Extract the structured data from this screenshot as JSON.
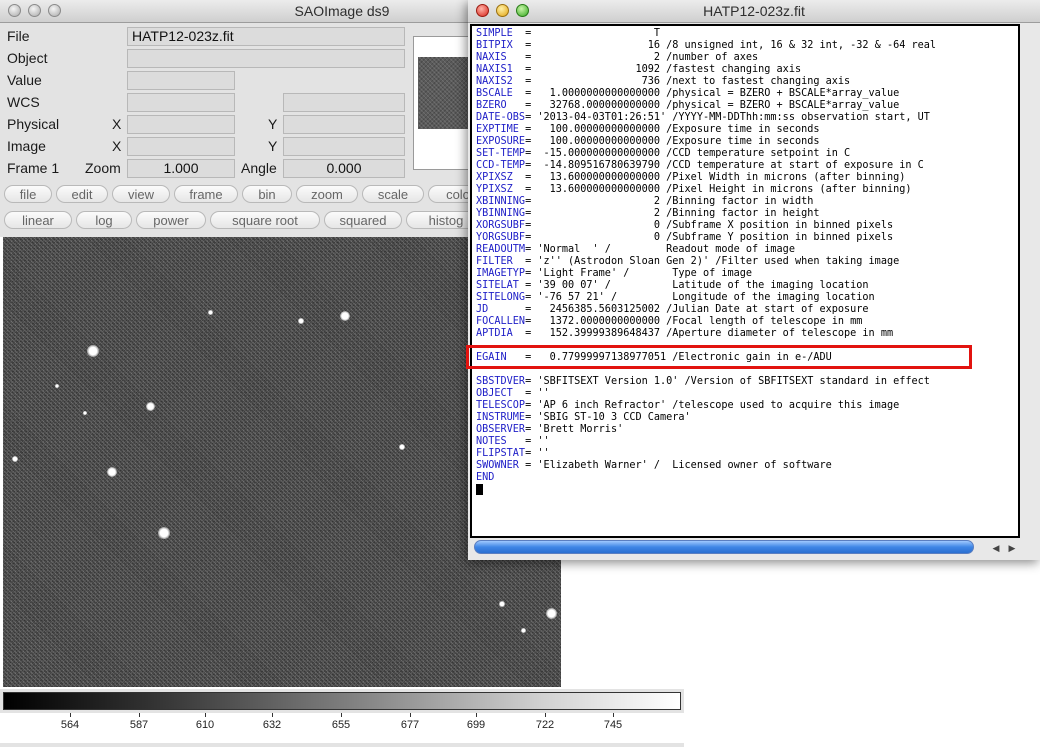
{
  "ds9": {
    "title": "SAOImage ds9",
    "info": {
      "file_label": "File",
      "file_value": "HATP12-023z.fit",
      "object_label": "Object",
      "value_label": "Value",
      "wcs_label": "WCS",
      "physical_label": "Physical",
      "image_label": "Image",
      "x_label": "X",
      "y_label": "Y",
      "frame_label": "Frame 1",
      "zoom_label": "Zoom",
      "zoom_value": "1.000",
      "angle_label": "Angle",
      "angle_value": "0.000"
    },
    "menu_buttons": [
      "file",
      "edit",
      "view",
      "frame",
      "bin",
      "zoom",
      "scale",
      "colo"
    ],
    "scale_buttons": [
      "linear",
      "log",
      "power",
      "square root",
      "squared",
      "histog"
    ],
    "colorbar_ticks": [
      "564",
      "587",
      "610",
      "632",
      "655",
      "677",
      "699",
      "722",
      "745"
    ]
  },
  "header_window": {
    "title": "HATP12-023z.fit",
    "lines": [
      {
        "key": "SIMPLE",
        "text": "SIMPLE  =                    T"
      },
      {
        "key": "BITPIX",
        "text": "BITPIX  =                   16 /8 unsigned int, 16 & 32 int, -32 & -64 real"
      },
      {
        "key": "NAXIS",
        "text": "NAXIS   =                    2 /number of axes"
      },
      {
        "key": "NAXIS1",
        "text": "NAXIS1  =                 1092 /fastest changing axis"
      },
      {
        "key": "NAXIS2",
        "text": "NAXIS2  =                  736 /next to fastest changing axis"
      },
      {
        "key": "BSCALE",
        "text": "BSCALE  =   1.0000000000000000 /physical = BZERO + BSCALE*array_value"
      },
      {
        "key": "BZERO",
        "text": "BZERO   =   32768.000000000000 /physical = BZERO + BSCALE*array_value"
      },
      {
        "key": "DATE-OBS",
        "text": "DATE-OBS= '2013-04-03T01:26:51' /YYYY-MM-DDThh:mm:ss observation start, UT"
      },
      {
        "key": "EXPTIME",
        "text": "EXPTIME =   100.00000000000000 /Exposure time in seconds"
      },
      {
        "key": "EXPOSURE",
        "text": "EXPOSURE=   100.00000000000000 /Exposure time in seconds"
      },
      {
        "key": "SET-TEMP",
        "text": "SET-TEMP=  -15.000000000000000 /CCD temperature setpoint in C"
      },
      {
        "key": "CCD-TEMP",
        "text": "CCD-TEMP=  -14.809516780639790 /CCD temperature at start of exposure in C"
      },
      {
        "key": "XPIXSZ",
        "text": "XPIXSZ  =   13.600000000000000 /Pixel Width in microns (after binning)"
      },
      {
        "key": "YPIXSZ",
        "text": "YPIXSZ  =   13.600000000000000 /Pixel Height in microns (after binning)"
      },
      {
        "key": "XBINNING",
        "text": "XBINNING=                    2 /Binning factor in width"
      },
      {
        "key": "YBINNING",
        "text": "YBINNING=                    2 /Binning factor in height"
      },
      {
        "key": "XORGSUBF",
        "text": "XORGSUBF=                    0 /Subframe X position in binned pixels"
      },
      {
        "key": "YORGSUBF",
        "text": "YORGSUBF=                    0 /Subframe Y position in binned pixels"
      },
      {
        "key": "READOUTM",
        "text": "READOUTM= 'Normal  ' /         Readout mode of image"
      },
      {
        "key": "FILTER",
        "text": "FILTER  = 'z'' (Astrodon Sloan Gen 2)' /Filter used when taking image"
      },
      {
        "key": "IMAGETYP",
        "text": "IMAGETYP= 'Light Frame' /       Type of image"
      },
      {
        "key": "SITELAT",
        "text": "SITELAT = '39 00 07' /          Latitude of the imaging location"
      },
      {
        "key": "SITELONG",
        "text": "SITELONG= '-76 57 21' /         Longitude of the imaging location"
      },
      {
        "key": "JD",
        "text": "JD      =   2456385.5603125002 /Julian Date at start of exposure"
      },
      {
        "key": "FOCALLEN",
        "text": "FOCALLEN=   1372.0000000000000 /Focal length of telescope in mm"
      },
      {
        "key": "APTDIA",
        "text": "APTDIA  =   152.39999389648437 /Aperture diameter of telescope in mm"
      },
      {
        "key": "",
        "text": ""
      },
      {
        "key": "EGAIN",
        "text": "EGAIN   =   0.77999997138977051 /Electronic gain in e-/ADU"
      },
      {
        "key": "",
        "text": ""
      },
      {
        "key": "SBSTDVER",
        "text": "SBSTDVER= 'SBFITSEXT Version 1.0' /Version of SBFITSEXT standard in effect"
      },
      {
        "key": "OBJECT",
        "text": "OBJECT  = ''"
      },
      {
        "key": "TELESCOP",
        "text": "TELESCOP= 'AP 6 inch Refractor' /telescope used to acquire this image"
      },
      {
        "key": "INSTRUME",
        "text": "INSTRUME= 'SBIG ST-10 3 CCD Camera'"
      },
      {
        "key": "OBSERVER",
        "text": "OBSERVER= 'Brett Morris'"
      },
      {
        "key": "NOTES",
        "text": "NOTES   = ''"
      },
      {
        "key": "FLIPSTAT",
        "text": "FLIPSTAT= ''"
      },
      {
        "key": "SWOWNER",
        "text": "SWOWNER = 'Elizabeth Warner' /  Licensed owner of software"
      },
      {
        "key": "END",
        "text": "END"
      }
    ],
    "highlight_color": "#e2130f"
  }
}
